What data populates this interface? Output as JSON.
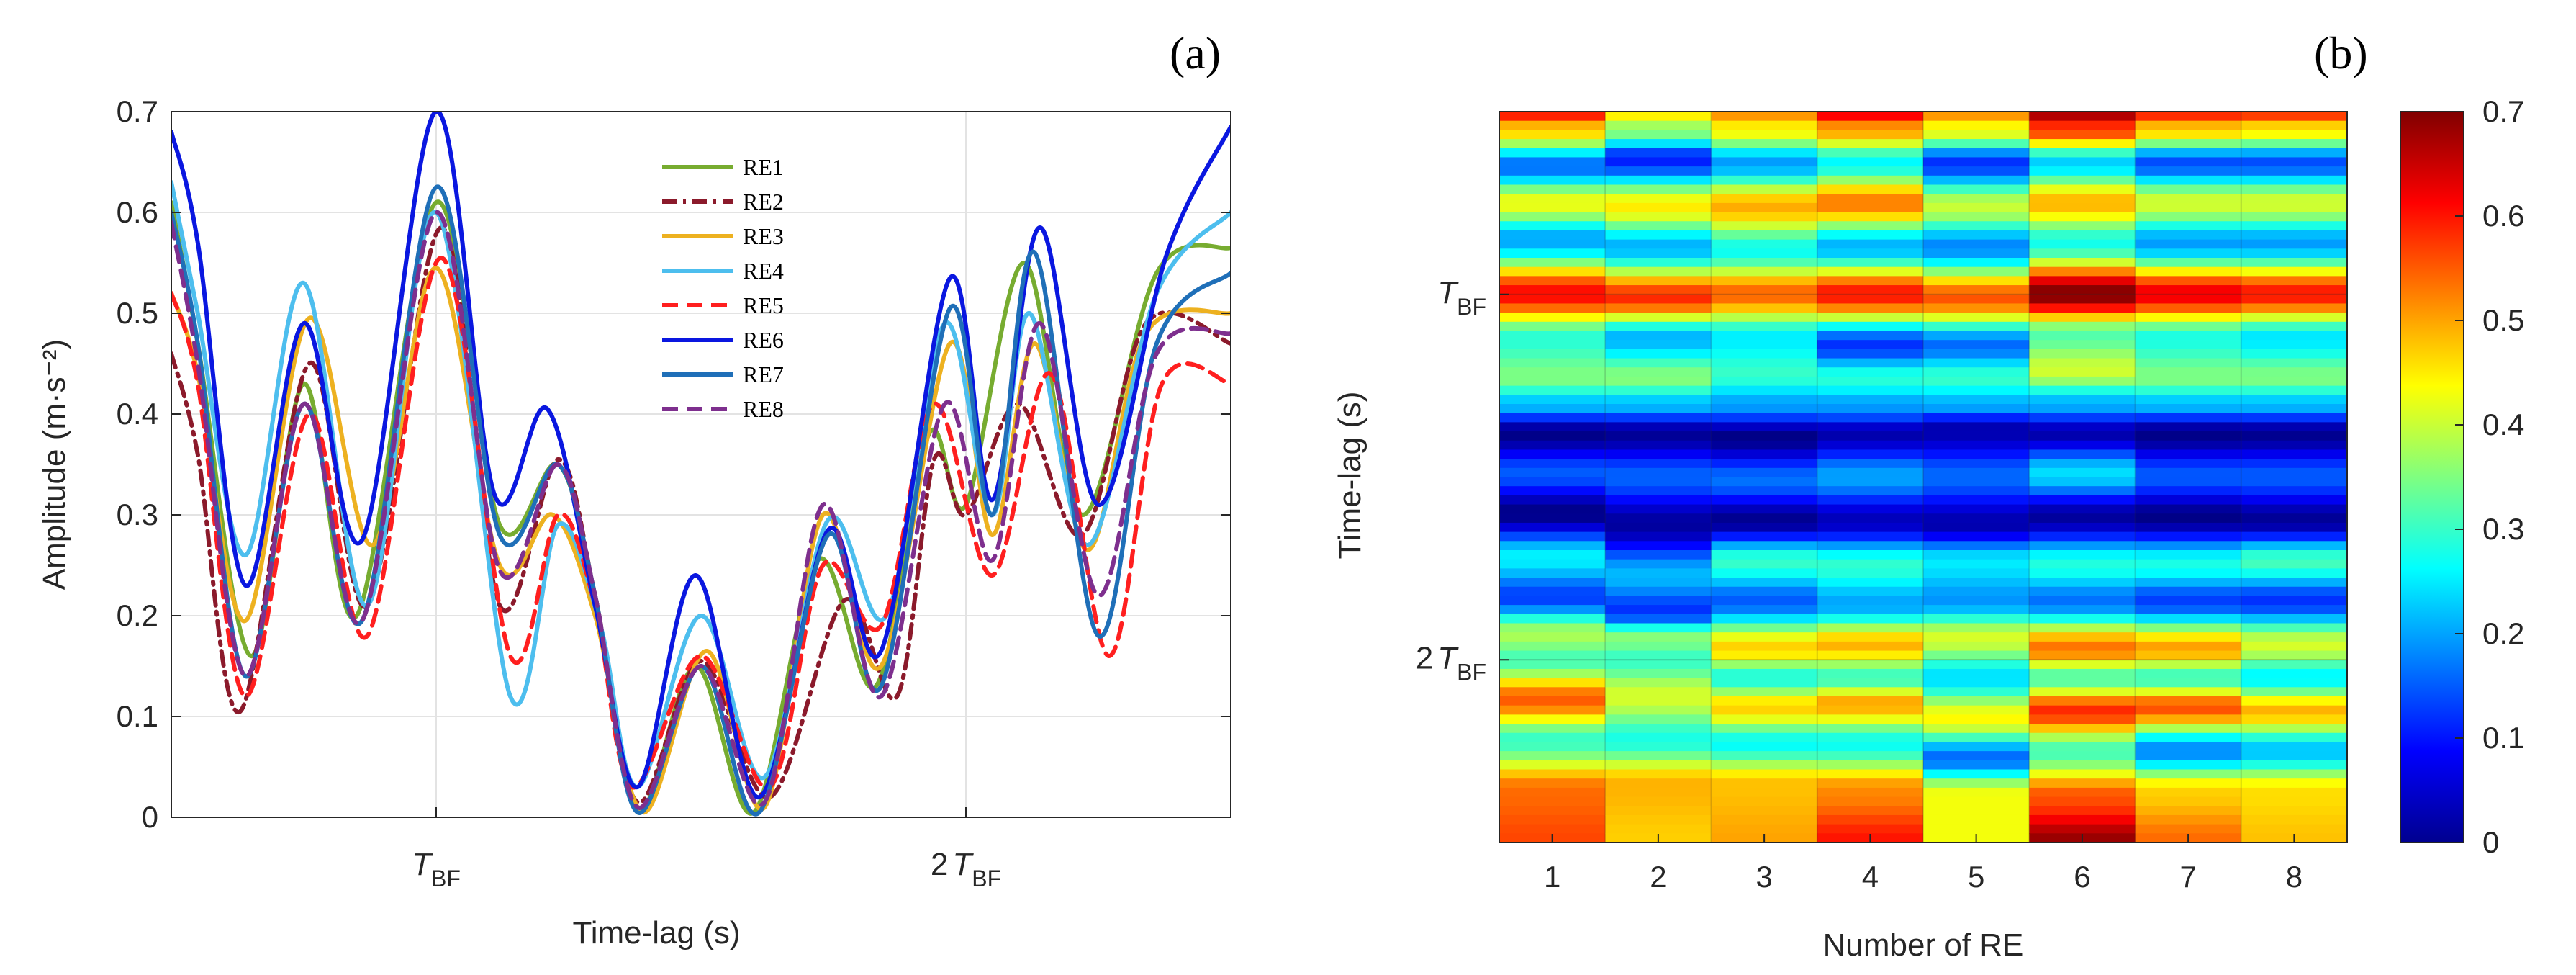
{
  "chart_data": [
    {
      "panel_label": "(a)",
      "type": "line",
      "xlabel": "Time-lag (s)",
      "ylabel": "Amplitude",
      "ylabel_unit": "(m·s⁻²)",
      "xlim": [
        0,
        2
      ],
      "ylim": [
        0,
        0.7
      ],
      "yticks": [
        0,
        0.1,
        0.2,
        0.3,
        0.4,
        0.5,
        0.6,
        0.7
      ],
      "ytick_labels": [
        "0",
        "0.1",
        "0.2",
        "0.3",
        "0.4",
        "0.5",
        "0.6",
        "0.7"
      ],
      "xticks": [
        0.5,
        1.5
      ],
      "xtick_labels": [
        {
          "prefix": "",
          "sym": "T",
          "sub": "BF"
        },
        {
          "prefix": "2",
          "sym": "T",
          "sub": "BF"
        }
      ],
      "grid": true,
      "legend_position": "top-center",
      "series": [
        {
          "name": "RE1",
          "color": "#77AC30",
          "dash": "solid",
          "points": [
            [
              0,
              0.61
            ],
            [
              0.05,
              0.47
            ],
            [
              0.15,
              0.16
            ],
            [
              0.25,
              0.43
            ],
            [
              0.35,
              0.2
            ],
            [
              0.5,
              0.61
            ],
            [
              0.62,
              0.29
            ],
            [
              0.73,
              0.35
            ],
            [
              0.8,
              0.22
            ],
            [
              0.88,
              0.005
            ],
            [
              0.99,
              0.15
            ],
            [
              1.1,
              0.005
            ],
            [
              1.22,
              0.255
            ],
            [
              1.33,
              0.13
            ],
            [
              1.43,
              0.38
            ],
            [
              1.5,
              0.31
            ],
            [
              1.61,
              0.55
            ],
            [
              1.72,
              0.3
            ],
            [
              1.86,
              0.54
            ],
            [
              2.0,
              0.565
            ]
          ]
        },
        {
          "name": "RE2",
          "color": "#8B1A2B",
          "dash": "dashdot",
          "points": [
            [
              0,
              0.46
            ],
            [
              0.05,
              0.36
            ],
            [
              0.13,
              0.105
            ],
            [
              0.26,
              0.45
            ],
            [
              0.37,
              0.21
            ],
            [
              0.51,
              0.585
            ],
            [
              0.62,
              0.21
            ],
            [
              0.73,
              0.355
            ],
            [
              0.8,
              0.22
            ],
            [
              0.88,
              0.015
            ],
            [
              1.0,
              0.155
            ],
            [
              1.13,
              0.02
            ],
            [
              1.27,
              0.215
            ],
            [
              1.37,
              0.12
            ],
            [
              1.44,
              0.355
            ],
            [
              1.5,
              0.3
            ],
            [
              1.6,
              0.41
            ],
            [
              1.72,
              0.28
            ],
            [
              1.84,
              0.49
            ],
            [
              2.0,
              0.47
            ]
          ]
        },
        {
          "name": "RE3",
          "color": "#EDB120",
          "dash": "solid",
          "points": [
            [
              0,
              0.52
            ],
            [
              0.05,
              0.44
            ],
            [
              0.14,
              0.195
            ],
            [
              0.26,
              0.495
            ],
            [
              0.38,
              0.27
            ],
            [
              0.5,
              0.545
            ],
            [
              0.62,
              0.25
            ],
            [
              0.72,
              0.3
            ],
            [
              0.8,
              0.2
            ],
            [
              0.89,
              0.005
            ],
            [
              1.01,
              0.165
            ],
            [
              1.12,
              0.01
            ],
            [
              1.23,
              0.3
            ],
            [
              1.34,
              0.15
            ],
            [
              1.47,
              0.47
            ],
            [
              1.55,
              0.28
            ],
            [
              1.63,
              0.47
            ],
            [
              1.73,
              0.265
            ],
            [
              1.84,
              0.48
            ],
            [
              2.0,
              0.5
            ]
          ]
        },
        {
          "name": "RE4",
          "color": "#4DBEEE",
          "dash": "solid",
          "points": [
            [
              0,
              0.63
            ],
            [
              0.05,
              0.5
            ],
            [
              0.14,
              0.26
            ],
            [
              0.25,
              0.53
            ],
            [
              0.37,
              0.21
            ],
            [
              0.5,
              0.6
            ],
            [
              0.64,
              0.12
            ],
            [
              0.73,
              0.29
            ],
            [
              0.81,
              0.19
            ],
            [
              0.88,
              0.03
            ],
            [
              1.0,
              0.2
            ],
            [
              1.12,
              0.04
            ],
            [
              1.24,
              0.295
            ],
            [
              1.35,
              0.2
            ],
            [
              1.46,
              0.49
            ],
            [
              1.55,
              0.3
            ],
            [
              1.62,
              0.5
            ],
            [
              1.73,
              0.27
            ],
            [
              1.86,
              0.52
            ],
            [
              2.0,
              0.6
            ]
          ]
        },
        {
          "name": "RE5",
          "color": "#FF1F1F",
          "dash": "dashed",
          "points": [
            [
              0,
              0.52
            ],
            [
              0.05,
              0.43
            ],
            [
              0.14,
              0.12
            ],
            [
              0.26,
              0.4
            ],
            [
              0.37,
              0.18
            ],
            [
              0.51,
              0.555
            ],
            [
              0.64,
              0.16
            ],
            [
              0.73,
              0.3
            ],
            [
              0.8,
              0.21
            ],
            [
              0.87,
              0.03
            ],
            [
              1.0,
              0.16
            ],
            [
              1.13,
              0.03
            ],
            [
              1.23,
              0.25
            ],
            [
              1.34,
              0.19
            ],
            [
              1.44,
              0.41
            ],
            [
              1.55,
              0.24
            ],
            [
              1.66,
              0.44
            ],
            [
              1.77,
              0.16
            ],
            [
              1.87,
              0.43
            ],
            [
              2.0,
              0.43
            ]
          ]
        },
        {
          "name": "RE6",
          "color": "#0A17E0",
          "dash": "solid",
          "points": [
            [
              0,
              0.68
            ],
            [
              0.05,
              0.57
            ],
            [
              0.14,
              0.23
            ],
            [
              0.25,
              0.49
            ],
            [
              0.36,
              0.275
            ],
            [
              0.5,
              0.7
            ],
            [
              0.61,
              0.32
            ],
            [
              0.71,
              0.405
            ],
            [
              0.8,
              0.21
            ],
            [
              0.88,
              0.03
            ],
            [
              0.99,
              0.24
            ],
            [
              1.11,
              0.02
            ],
            [
              1.24,
              0.285
            ],
            [
              1.34,
              0.165
            ],
            [
              1.47,
              0.535
            ],
            [
              1.55,
              0.315
            ],
            [
              1.64,
              0.585
            ],
            [
              1.75,
              0.31
            ],
            [
              1.88,
              0.56
            ],
            [
              2.0,
              0.685
            ]
          ]
        },
        {
          "name": "RE7",
          "color": "#1F6FB8",
          "dash": "solid",
          "points": [
            [
              0,
              0.6
            ],
            [
              0.05,
              0.47
            ],
            [
              0.14,
              0.14
            ],
            [
              0.25,
              0.41
            ],
            [
              0.36,
              0.195
            ],
            [
              0.5,
              0.625
            ],
            [
              0.62,
              0.28
            ],
            [
              0.73,
              0.35
            ],
            [
              0.8,
              0.22
            ],
            [
              0.88,
              0.005
            ],
            [
              1.0,
              0.15
            ],
            [
              1.11,
              0.005
            ],
            [
              1.24,
              0.28
            ],
            [
              1.34,
              0.13
            ],
            [
              1.47,
              0.505
            ],
            [
              1.55,
              0.3
            ],
            [
              1.63,
              0.56
            ],
            [
              1.75,
              0.18
            ],
            [
              1.86,
              0.47
            ],
            [
              2.0,
              0.54
            ]
          ]
        },
        {
          "name": "RE8",
          "color": "#7E2F8E",
          "dash": "dashed",
          "points": [
            [
              0,
              0.59
            ],
            [
              0.05,
              0.45
            ],
            [
              0.14,
              0.14
            ],
            [
              0.25,
              0.41
            ],
            [
              0.36,
              0.195
            ],
            [
              0.5,
              0.6
            ],
            [
              0.62,
              0.245
            ],
            [
              0.73,
              0.35
            ],
            [
              0.8,
              0.22
            ],
            [
              0.88,
              0.01
            ],
            [
              1.0,
              0.15
            ],
            [
              1.12,
              0.015
            ],
            [
              1.23,
              0.31
            ],
            [
              1.34,
              0.12
            ],
            [
              1.46,
              0.41
            ],
            [
              1.55,
              0.255
            ],
            [
              1.64,
              0.49
            ],
            [
              1.75,
              0.22
            ],
            [
              1.86,
              0.46
            ],
            [
              2.0,
              0.48
            ]
          ]
        }
      ]
    },
    {
      "panel_label": "(b)",
      "type": "heatmap",
      "xlabel": "Number of RE",
      "ylabel": "Time-lag (s)",
      "categories": [
        "1",
        "2",
        "3",
        "4",
        "5",
        "6",
        "7",
        "8"
      ],
      "ylim": [
        0,
        2
      ],
      "yticks": [
        0.5,
        1.5
      ],
      "ytick_labels": [
        {
          "prefix": "",
          "sym": "T",
          "sub": "BF"
        },
        {
          "prefix": "2",
          "sym": "T",
          "sub": "BF"
        }
      ],
      "colorbar": {
        "colormap": "jet",
        "range": [
          0,
          0.7
        ],
        "ticks": [
          0,
          0.1,
          0.2,
          0.3,
          0.4,
          0.5,
          0.6,
          0.7
        ],
        "tick_labels": [
          "0",
          "0.1",
          "0.2",
          "0.3",
          "0.4",
          "0.5",
          "0.6",
          "0.7"
        ]
      }
    }
  ]
}
